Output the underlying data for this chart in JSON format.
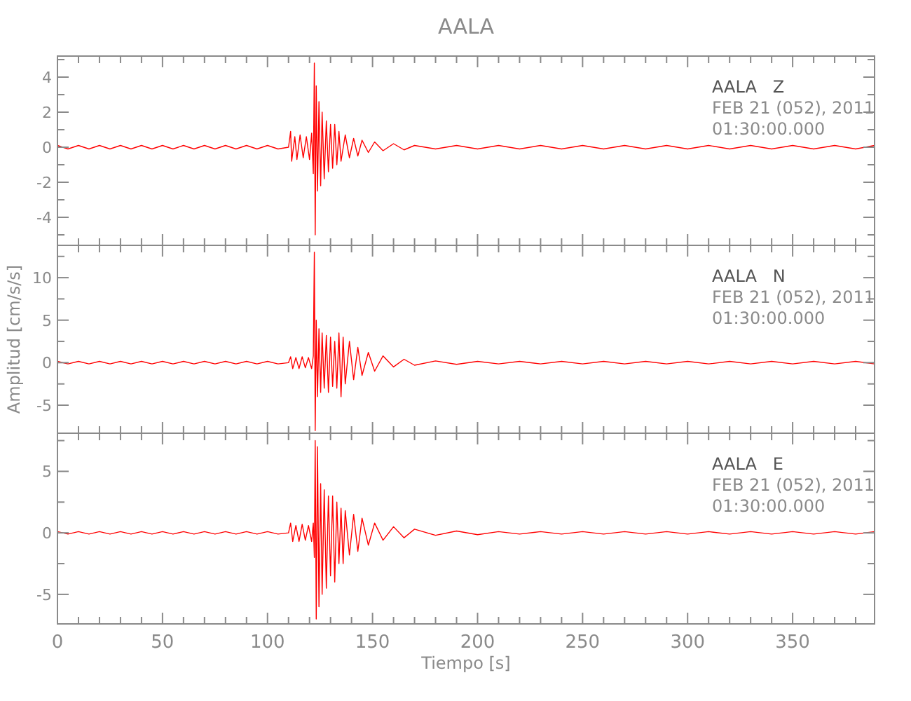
{
  "chart_data": [
    {
      "type": "line",
      "title": "AALA",
      "annotations": [
        "AALA   Z",
        "FEB 21 (052), 2011",
        "01:30:00.000"
      ],
      "xlim": [
        0,
        389
      ],
      "ylim": [
        -5.6,
        5.2
      ],
      "xticks": [
        0,
        {
          "value": 10,
          "label": null
        },
        {
          "value": 20,
          "label": null
        },
        {
          "value": 30,
          "label": null
        },
        {
          "value": 40,
          "label": null
        },
        50,
        {
          "value": 60,
          "label": null
        },
        {
          "value": 70,
          "label": null
        },
        {
          "value": 80,
          "label": null
        },
        {
          "value": 90,
          "label": null
        },
        100,
        {
          "value": 110,
          "label": null
        },
        {
          "value": 120,
          "label": null
        },
        {
          "value": 130,
          "label": null
        },
        {
          "value": 140,
          "label": null
        },
        150,
        {
          "value": 160,
          "label": null
        },
        {
          "value": 170,
          "label": null
        },
        {
          "value": 180,
          "label": null
        },
        {
          "value": 190,
          "label": null
        },
        200,
        {
          "value": 210,
          "label": null
        },
        {
          "value": 220,
          "label": null
        },
        {
          "value": 230,
          "label": null
        },
        {
          "value": 240,
          "label": null
        },
        250,
        {
          "value": 260,
          "label": null
        },
        {
          "value": 270,
          "label": null
        },
        {
          "value": 280,
          "label": null
        },
        {
          "value": 290,
          "label": null
        },
        300,
        {
          "value": 310,
          "label": null
        },
        {
          "value": 320,
          "label": null
        },
        {
          "value": 330,
          "label": null
        },
        {
          "value": 340,
          "label": null
        },
        350,
        {
          "value": 360,
          "label": null
        },
        {
          "value": 370,
          "label": null
        },
        {
          "value": 380,
          "label": null
        }
      ],
      "yticks": [
        {
          "value": -5,
          "label": null
        },
        -4,
        {
          "value": -3,
          "label": null
        },
        -2,
        {
          "value": -1,
          "label": null
        },
        0,
        {
          "value": 1,
          "label": null
        },
        2,
        {
          "value": 3,
          "label": null
        },
        4,
        {
          "value": 5,
          "label": null
        }
      ],
      "tick_labels": "y",
      "marker": "none",
      "series": [
        {
          "color": "#ff0000",
          "x": [
            0,
            5,
            10,
            15,
            20,
            25,
            30,
            35,
            40,
            45,
            50,
            55,
            60,
            65,
            70,
            75,
            80,
            85,
            90,
            95,
            100,
            105,
            110,
            111,
            111.5,
            113,
            114,
            115.5,
            117,
            118.5,
            120,
            121,
            121.8,
            122.3,
            122.7,
            123.2,
            123.8,
            124.5,
            125.3,
            126,
            127,
            128,
            129,
            130,
            131,
            132,
            133,
            134,
            135,
            137,
            139,
            141,
            143,
            145,
            148,
            151,
            155,
            160,
            165,
            170,
            180,
            190,
            200,
            210,
            220,
            230,
            240,
            250,
            260,
            270,
            280,
            290,
            300,
            310,
            320,
            330,
            340,
            350,
            360,
            370,
            380,
            389
          ],
          "values": [
            0.1,
            -0.1,
            0.1,
            -0.1,
            0.1,
            -0.1,
            0.1,
            -0.1,
            0.1,
            -0.1,
            0.1,
            -0.1,
            0.1,
            -0.1,
            0.1,
            -0.1,
            0.1,
            -0.1,
            0.1,
            -0.1,
            0.1,
            -0.1,
            0,
            0.9,
            -0.8,
            0.6,
            -0.7,
            0.7,
            -0.6,
            0.6,
            -0.7,
            0.8,
            -1.5,
            4.8,
            -5,
            3.5,
            -2.5,
            2.6,
            -2.2,
            2,
            -1.8,
            1.5,
            -1.4,
            1.3,
            -1.2,
            1.3,
            -1,
            0.9,
            -0.8,
            0.7,
            -0.6,
            0.5,
            -0.5,
            0.4,
            -0.3,
            0.3,
            -0.2,
            0.2,
            -0.15,
            0.1,
            -0.1,
            0.1,
            -0.1,
            0.1,
            -0.1,
            0.1,
            -0.1,
            0.1,
            -0.1,
            0.1,
            -0.1,
            0.1,
            -0.1,
            0.1,
            -0.1,
            0.1,
            -0.1,
            0.1,
            -0.1,
            0.1,
            -0.1,
            0.1
          ]
        }
      ]
    },
    {
      "type": "line",
      "ylabel": "Amplitud [cm/s/s]",
      "annotations": [
        "AALA   N",
        "FEB 21 (052), 2011",
        "01:30:00.000"
      ],
      "xlim": [
        0,
        389
      ],
      "ylim": [
        -8.3,
        13.8
      ],
      "xticks": [
        0,
        {
          "value": 10,
          "label": null
        },
        {
          "value": 20,
          "label": null
        },
        {
          "value": 30,
          "label": null
        },
        {
          "value": 40,
          "label": null
        },
        50,
        {
          "value": 60,
          "label": null
        },
        {
          "value": 70,
          "label": null
        },
        {
          "value": 80,
          "label": null
        },
        {
          "value": 90,
          "label": null
        },
        100,
        {
          "value": 110,
          "label": null
        },
        {
          "value": 120,
          "label": null
        },
        {
          "value": 130,
          "label": null
        },
        {
          "value": 140,
          "label": null
        },
        150,
        {
          "value": 160,
          "label": null
        },
        {
          "value": 170,
          "label": null
        },
        {
          "value": 180,
          "label": null
        },
        {
          "value": 190,
          "label": null
        },
        200,
        {
          "value": 210,
          "label": null
        },
        {
          "value": 220,
          "label": null
        },
        {
          "value": 230,
          "label": null
        },
        {
          "value": 240,
          "label": null
        },
        250,
        {
          "value": 260,
          "label": null
        },
        {
          "value": 270,
          "label": null
        },
        {
          "value": 280,
          "label": null
        },
        {
          "value": 290,
          "label": null
        },
        300,
        {
          "value": 310,
          "label": null
        },
        {
          "value": 320,
          "label": null
        },
        {
          "value": 330,
          "label": null
        },
        {
          "value": 340,
          "label": null
        },
        350,
        {
          "value": 360,
          "label": null
        },
        {
          "value": 370,
          "label": null
        },
        {
          "value": 380,
          "label": null
        }
      ],
      "yticks": [
        -5,
        {
          "value": -2.5,
          "label": null
        },
        0,
        {
          "value": 2.5,
          "label": null
        },
        5,
        {
          "value": 7.5,
          "label": null
        },
        10,
        {
          "value": 12.5,
          "label": null
        }
      ],
      "tick_labels": "y",
      "marker": "none",
      "series": [
        {
          "color": "#ff0000",
          "x": [
            0,
            5,
            10,
            15,
            20,
            25,
            30,
            35,
            40,
            45,
            50,
            55,
            60,
            65,
            70,
            75,
            80,
            85,
            90,
            95,
            100,
            105,
            110,
            111,
            112,
            113.5,
            115,
            116.5,
            118,
            119.5,
            121,
            121.8,
            122.3,
            122.7,
            123.2,
            123.8,
            124.5,
            125.3,
            126,
            127,
            128,
            129,
            130,
            131,
            132,
            133,
            134,
            135,
            136,
            137,
            139,
            141,
            143,
            145,
            148,
            151,
            155,
            160,
            165,
            170,
            180,
            190,
            200,
            210,
            220,
            230,
            240,
            250,
            260,
            270,
            280,
            290,
            300,
            310,
            320,
            330,
            340,
            350,
            360,
            370,
            380,
            389
          ],
          "values": [
            0.15,
            -0.15,
            0.15,
            -0.15,
            0.15,
            -0.15,
            0.15,
            -0.15,
            0.15,
            -0.15,
            0.15,
            -0.15,
            0.15,
            -0.15,
            0.15,
            -0.15,
            0.15,
            -0.15,
            0.15,
            -0.15,
            0.15,
            -0.15,
            0,
            0.7,
            -0.7,
            0.6,
            -0.7,
            0.7,
            -0.6,
            0.6,
            -0.7,
            0.8,
            13,
            -8,
            5,
            -4,
            4,
            -3.5,
            3.5,
            -3,
            3.2,
            -3.5,
            3,
            -2.8,
            2.5,
            -3,
            3.5,
            -4,
            3,
            -2.5,
            2.5,
            -2,
            1.8,
            -1.5,
            1.2,
            -1,
            0.8,
            -0.5,
            0.4,
            -0.3,
            0.2,
            -0.2,
            0.15,
            -0.15,
            0.15,
            -0.15,
            0.15,
            -0.15,
            0.15,
            -0.15,
            0.15,
            -0.15,
            0.15,
            -0.15,
            0.15,
            -0.15,
            0.15,
            -0.15,
            0.15,
            -0.15,
            0.15,
            -0.15
          ]
        }
      ]
    },
    {
      "type": "line",
      "xlabel": "Tiempo [s]",
      "annotations": [
        "AALA   E",
        "FEB 21 (052), 2011",
        "01:30:00.000"
      ],
      "xlim": [
        0,
        389
      ],
      "ylim": [
        -7.4,
        8.1
      ],
      "xticks": [
        0,
        {
          "value": 10,
          "label": null
        },
        {
          "value": 20,
          "label": null
        },
        {
          "value": 30,
          "label": null
        },
        {
          "value": 40,
          "label": null
        },
        50,
        {
          "value": 60,
          "label": null
        },
        {
          "value": 70,
          "label": null
        },
        {
          "value": 80,
          "label": null
        },
        {
          "value": 90,
          "label": null
        },
        100,
        {
          "value": 110,
          "label": null
        },
        {
          "value": 120,
          "label": null
        },
        {
          "value": 130,
          "label": null
        },
        {
          "value": 140,
          "label": null
        },
        150,
        {
          "value": 160,
          "label": null
        },
        {
          "value": 170,
          "label": null
        },
        {
          "value": 180,
          "label": null
        },
        {
          "value": 190,
          "label": null
        },
        200,
        {
          "value": 210,
          "label": null
        },
        {
          "value": 220,
          "label": null
        },
        {
          "value": 230,
          "label": null
        },
        {
          "value": 240,
          "label": null
        },
        250,
        {
          "value": 260,
          "label": null
        },
        {
          "value": 270,
          "label": null
        },
        {
          "value": 280,
          "label": null
        },
        {
          "value": 290,
          "label": null
        },
        300,
        {
          "value": 310,
          "label": null
        },
        {
          "value": 320,
          "label": null
        },
        {
          "value": 330,
          "label": null
        },
        {
          "value": 340,
          "label": null
        },
        350,
        {
          "value": 360,
          "label": null
        },
        {
          "value": 370,
          "label": null
        },
        {
          "value": 380,
          "label": null
        }
      ],
      "yticks": [
        -5,
        {
          "value": -2.5,
          "label": null
        },
        0,
        {
          "value": 2.5,
          "label": null
        },
        5,
        {
          "value": 7.5,
          "label": null
        }
      ],
      "marker": "none",
      "series": [
        {
          "color": "#ff0000",
          "x": [
            0,
            5,
            10,
            15,
            20,
            25,
            30,
            35,
            40,
            45,
            50,
            55,
            60,
            65,
            70,
            75,
            80,
            85,
            90,
            95,
            100,
            105,
            110,
            111,
            112,
            113.5,
            115,
            116.5,
            118,
            119.5,
            121,
            121.8,
            122.3,
            122.7,
            123.2,
            123.8,
            124.5,
            125.3,
            126,
            127,
            128,
            129,
            130,
            131,
            132,
            133,
            134,
            135,
            136,
            137,
            139,
            141,
            143,
            145,
            148,
            151,
            155,
            160,
            165,
            170,
            180,
            190,
            200,
            210,
            220,
            230,
            240,
            250,
            260,
            270,
            280,
            290,
            300,
            310,
            320,
            330,
            340,
            350,
            360,
            370,
            380,
            389
          ],
          "values": [
            0.1,
            -0.1,
            0.1,
            -0.1,
            0.1,
            -0.1,
            0.1,
            -0.1,
            0.1,
            -0.1,
            0.1,
            -0.1,
            0.1,
            -0.1,
            0.1,
            -0.1,
            0.1,
            -0.1,
            0.1,
            -0.1,
            0.1,
            -0.1,
            0,
            0.8,
            -0.7,
            0.6,
            -0.7,
            0.7,
            -0.6,
            0.6,
            -0.7,
            0.8,
            -2,
            7.5,
            -7,
            7,
            -6,
            4,
            -5,
            3.5,
            -4.5,
            3,
            -3.5,
            3,
            -4,
            2.5,
            -2.5,
            2,
            -2.5,
            1.8,
            -1.8,
            1.5,
            -1.5,
            1.2,
            -1,
            0.8,
            -0.6,
            0.5,
            -0.4,
            0.3,
            -0.2,
            0.15,
            -0.15,
            0.1,
            -0.1,
            0.1,
            -0.1,
            0.1,
            -0.1,
            0.1,
            -0.1,
            0.1,
            -0.1,
            0.1,
            -0.1,
            0.1,
            -0.1,
            0.1,
            -0.1,
            0.1,
            -0.1,
            0.1
          ]
        }
      ]
    }
  ]
}
